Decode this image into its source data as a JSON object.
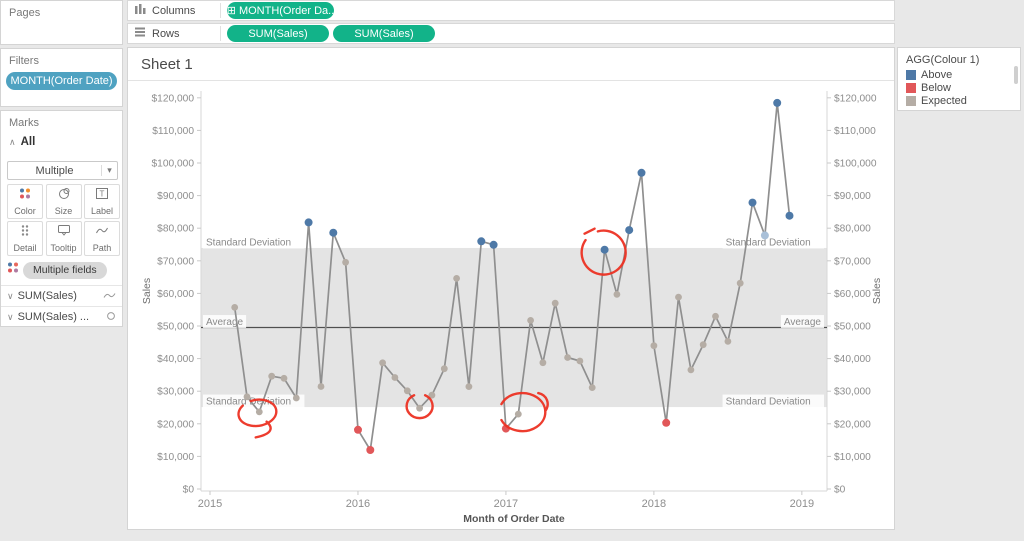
{
  "shelves": {
    "columns": {
      "label": "Columns",
      "pills": [
        {
          "label": "MONTH(Order Da..",
          "icon": "table-plus"
        }
      ]
    },
    "rows": {
      "label": "Rows",
      "pills": [
        {
          "label": "SUM(Sales)"
        },
        {
          "label": "SUM(Sales)"
        }
      ]
    },
    "pill_color": "#12b389"
  },
  "sidebar": {
    "pages": {
      "title": "Pages"
    },
    "filters": {
      "title": "Filters",
      "pills": [
        {
          "label": "MONTH(Order Date)",
          "color": "#4fa2c1"
        }
      ]
    },
    "marks": {
      "title": "Marks",
      "card_header": "All",
      "mark_type_dropdown": "Multiple",
      "buttons": [
        {
          "label": "Color"
        },
        {
          "label": "Size"
        },
        {
          "label": "Label"
        },
        {
          "label": "Detail"
        },
        {
          "label": "Tooltip"
        },
        {
          "label": "Path"
        }
      ],
      "multiple_fields_pill": "Multiple fields",
      "mark_cards": [
        {
          "label": "SUM(Sales)",
          "mark": "line"
        },
        {
          "label": "SUM(Sales) ...",
          "mark": "circle"
        }
      ]
    }
  },
  "sheet": {
    "title": "Sheet 1"
  },
  "legend": {
    "title": "AGG(Colour 1)",
    "items": [
      {
        "label": "Above",
        "color": "#4e79a7"
      },
      {
        "label": "Below",
        "color": "#e15759"
      },
      {
        "label": "Expected",
        "color": "#b5ada5"
      }
    ]
  },
  "chart_data": {
    "type": "line",
    "title": "Sheet 1",
    "xlabel": "Month of Order Date",
    "ylabel": "Sales",
    "x_ticks": [
      "2015",
      "2016",
      "2017",
      "2018",
      "2019"
    ],
    "y_ticks": [
      "$0",
      "$10,000",
      "$20,000",
      "$30,000",
      "$40,000",
      "$50,000",
      "$60,000",
      "$70,000",
      "$80,000",
      "$90,000",
      "$100,000",
      "$110,000",
      "$120,000"
    ],
    "ylim": [
      0,
      120000
    ],
    "grid": false,
    "legend_position": "top-right",
    "colors": {
      "Above": "#4e79a7",
      "Below": "#e15759",
      "Expected": "#b5ada5",
      "AboveMuted": "#a9c0d8",
      "line": "#8f8f8f",
      "band": "#e4e4e4",
      "average_line": "#4f4f4f"
    },
    "reference": {
      "average_label": "Average",
      "band_label": "Standard Deviation",
      "average": 49531,
      "band_low": 25128,
      "band_high": 73934
    },
    "points": [
      {
        "month": "2015-03",
        "value": 55691,
        "status": "Expected"
      },
      {
        "month": "2015-04",
        "value": 28295,
        "status": "Expected"
      },
      {
        "month": "2015-05",
        "value": 23648,
        "status": "Expected"
      },
      {
        "month": "2015-06",
        "value": 34595,
        "status": "Expected"
      },
      {
        "month": "2015-07",
        "value": 33946,
        "status": "Expected"
      },
      {
        "month": "2015-08",
        "value": 27909,
        "status": "Expected"
      },
      {
        "month": "2015-09",
        "value": 81777,
        "status": "Above"
      },
      {
        "month": "2015-10",
        "value": 31453,
        "status": "Expected"
      },
      {
        "month": "2015-11",
        "value": 78629,
        "status": "Above"
      },
      {
        "month": "2015-12",
        "value": 69545,
        "status": "Expected"
      },
      {
        "month": "2016-01",
        "value": 18174,
        "status": "Below"
      },
      {
        "month": "2016-02",
        "value": 11951,
        "status": "Below"
      },
      {
        "month": "2016-03",
        "value": 38726,
        "status": "Expected"
      },
      {
        "month": "2016-04",
        "value": 34195,
        "status": "Expected"
      },
      {
        "month": "2016-05",
        "value": 30131,
        "status": "Expected"
      },
      {
        "month": "2016-06",
        "value": 24797,
        "status": "Expected"
      },
      {
        "month": "2016-07",
        "value": 28765,
        "status": "Expected"
      },
      {
        "month": "2016-08",
        "value": 36898,
        "status": "Expected"
      },
      {
        "month": "2016-09",
        "value": 64595,
        "status": "Expected"
      },
      {
        "month": "2016-10",
        "value": 31404,
        "status": "Expected"
      },
      {
        "month": "2016-11",
        "value": 75972,
        "status": "Above"
      },
      {
        "month": "2016-12",
        "value": 74920,
        "status": "Above"
      },
      {
        "month": "2017-01",
        "value": 18542,
        "status": "Below"
      },
      {
        "month": "2017-02",
        "value": 22978,
        "status": "Expected"
      },
      {
        "month": "2017-03",
        "value": 51716,
        "status": "Expected"
      },
      {
        "month": "2017-04",
        "value": 38750,
        "status": "Expected"
      },
      {
        "month": "2017-05",
        "value": 56988,
        "status": "Expected"
      },
      {
        "month": "2017-06",
        "value": 40344,
        "status": "Expected"
      },
      {
        "month": "2017-07",
        "value": 39262,
        "status": "Expected"
      },
      {
        "month": "2017-08",
        "value": 31115,
        "status": "Expected"
      },
      {
        "month": "2017-09",
        "value": 73410,
        "status": "Above"
      },
      {
        "month": "2017-10",
        "value": 59687,
        "status": "Expected"
      },
      {
        "month": "2017-11",
        "value": 79412,
        "status": "Above"
      },
      {
        "month": "2017-12",
        "value": 96999,
        "status": "Above"
      },
      {
        "month": "2018-01",
        "value": 43971,
        "status": "Expected"
      },
      {
        "month": "2018-02",
        "value": 20301,
        "status": "Below"
      },
      {
        "month": "2018-03",
        "value": 58872,
        "status": "Expected"
      },
      {
        "month": "2018-04",
        "value": 36522,
        "status": "Expected"
      },
      {
        "month": "2018-05",
        "value": 44261,
        "status": "Expected"
      },
      {
        "month": "2018-06",
        "value": 52982,
        "status": "Expected"
      },
      {
        "month": "2018-07",
        "value": 45264,
        "status": "Expected"
      },
      {
        "month": "2018-08",
        "value": 63121,
        "status": "Expected"
      },
      {
        "month": "2018-09",
        "value": 87867,
        "status": "Above"
      },
      {
        "month": "2018-10",
        "value": 77777,
        "status": "Above",
        "muted": true
      },
      {
        "month": "2018-11",
        "value": 118448,
        "status": "Above"
      },
      {
        "month": "2018-12",
        "value": 83829,
        "status": "Above"
      }
    ],
    "annotations": {
      "color": "#ec3223",
      "circled_months": [
        "2015-05",
        "2016-06",
        "2017-02",
        "2017-09"
      ]
    }
  }
}
